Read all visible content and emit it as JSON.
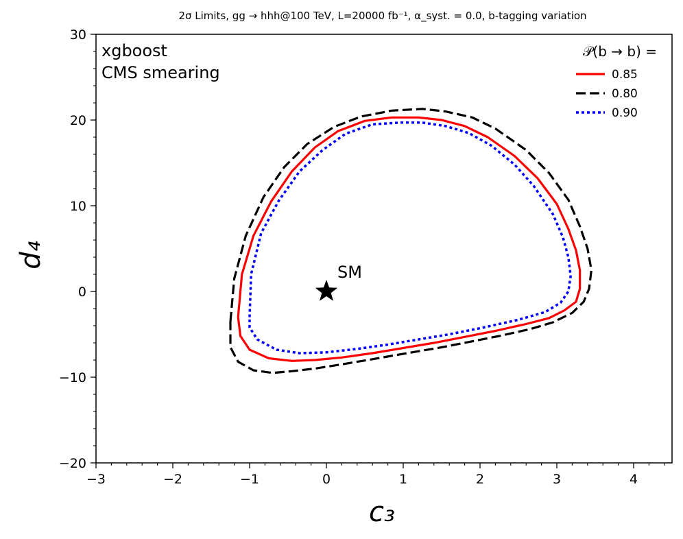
{
  "chart_data": {
    "type": "line",
    "title": "2σ Limits, gg → hhh@100 TeV, L=20000 fb⁻¹, α_syst. = 0.0, b-tagging variation",
    "xlabel": "c₃",
    "ylabel": "d₄",
    "xlim": [
      -3,
      4.5
    ],
    "ylim": [
      -20,
      30
    ],
    "x_ticks": [
      -3,
      -2,
      -1,
      0,
      1,
      2,
      3,
      4
    ],
    "y_ticks": [
      -20,
      -10,
      0,
      10,
      20,
      30
    ],
    "grid": false,
    "annotations": [
      "xgboost",
      "CMS smearing"
    ],
    "legend": {
      "title": "𝒫(b → b) =",
      "placement": "top-right"
    },
    "marker": {
      "name": "SM",
      "x": 0,
      "y": 0,
      "symbol": "star"
    },
    "series": [
      {
        "name": "0.85",
        "color": "#ff0000",
        "style": "solid",
        "x": [
          -1.15,
          -1.1,
          -0.95,
          -0.72,
          -0.45,
          -0.15,
          0.15,
          0.5,
          0.85,
          1.2,
          1.5,
          1.8,
          2.1,
          2.45,
          2.75,
          3.0,
          3.15,
          3.25,
          3.3,
          3.3,
          3.25,
          3.1,
          2.9,
          2.6,
          2.2,
          1.8,
          1.4,
          1.0,
          0.6,
          0.2,
          -0.15,
          -0.45,
          -0.75,
          -1.0,
          -1.12,
          -1.15
        ],
        "y": [
          -3.0,
          2.0,
          6.5,
          10.5,
          14.0,
          16.8,
          18.7,
          19.9,
          20.3,
          20.3,
          20.0,
          19.3,
          18.0,
          15.8,
          13.2,
          10.2,
          7.3,
          4.8,
          2.5,
          0.3,
          -1.2,
          -2.2,
          -3.1,
          -3.8,
          -4.6,
          -5.3,
          -6.0,
          -6.6,
          -7.2,
          -7.7,
          -8.0,
          -8.1,
          -7.8,
          -6.8,
          -5.2,
          -3.0
        ]
      },
      {
        "name": "0.80",
        "color": "#000000",
        "style": "dashed",
        "x": [
          -1.25,
          -1.2,
          -1.05,
          -0.82,
          -0.55,
          -0.25,
          0.1,
          0.45,
          0.85,
          1.25,
          1.55,
          1.9,
          2.2,
          2.6,
          2.9,
          3.15,
          3.3,
          3.4,
          3.45,
          3.42,
          3.35,
          3.2,
          2.95,
          2.65,
          2.25,
          1.85,
          1.45,
          1.05,
          0.6,
          0.2,
          -0.15,
          -0.45,
          -0.7,
          -0.95,
          -1.15,
          -1.25,
          -1.25
        ],
        "y": [
          -3.5,
          1.5,
          6.5,
          11.0,
          14.5,
          17.2,
          19.2,
          20.4,
          21.1,
          21.3,
          21.0,
          20.3,
          19.0,
          16.5,
          13.8,
          10.7,
          7.6,
          5.0,
          2.5,
          0.3,
          -1.2,
          -2.5,
          -3.6,
          -4.4,
          -5.2,
          -5.9,
          -6.6,
          -7.2,
          -7.9,
          -8.5,
          -9.0,
          -9.3,
          -9.5,
          -9.2,
          -8.2,
          -6.5,
          -3.5
        ]
      },
      {
        "name": "0.90",
        "color": "#0000ff",
        "style": "dotted",
        "x": [
          -1.0,
          -0.98,
          -0.85,
          -0.62,
          -0.35,
          -0.05,
          0.25,
          0.6,
          0.95,
          1.25,
          1.55,
          1.85,
          2.15,
          2.45,
          2.7,
          2.95,
          3.08,
          3.15,
          3.18,
          3.15,
          3.05,
          2.85,
          2.5,
          2.05,
          1.6,
          1.2,
          0.8,
          0.4,
          0.0,
          -0.35,
          -0.65,
          -0.9,
          -1.0,
          -1.0
        ],
        "y": [
          -3.0,
          2.0,
          6.8,
          10.6,
          14.0,
          16.5,
          18.4,
          19.5,
          19.7,
          19.7,
          19.3,
          18.5,
          17.0,
          14.8,
          12.3,
          9.0,
          6.3,
          4.0,
          1.8,
          0.0,
          -1.3,
          -2.4,
          -3.3,
          -4.2,
          -5.0,
          -5.6,
          -6.2,
          -6.7,
          -7.1,
          -7.2,
          -6.8,
          -5.6,
          -4.2,
          -3.0
        ]
      }
    ]
  }
}
